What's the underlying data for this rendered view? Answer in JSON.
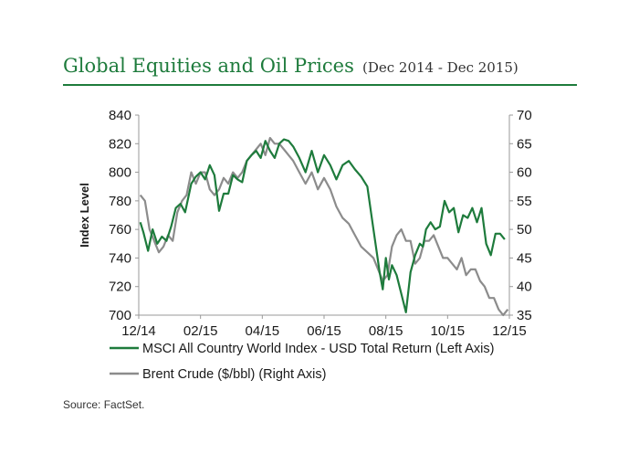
{
  "title": "Global Equities and Oil Prices",
  "subtitle": "(Dec 2014 - Dec 2015)",
  "source": "Source: FactSet.",
  "colors": {
    "accent": "#1e7b3c",
    "equity": "#1e7b3c",
    "oil": "#8c8c8c"
  },
  "chart_data": {
    "type": "line",
    "xlabel": "",
    "ylabel": "Index Level",
    "y2label": "",
    "x_range": [
      0,
      12.0
    ],
    "x_tick_positions": [
      0,
      2,
      4,
      6,
      8,
      10,
      12
    ],
    "x_tick_labels": [
      "12/14",
      "02/15",
      "04/15",
      "06/15",
      "08/15",
      "10/15",
      "12/15"
    ],
    "ylim": [
      700,
      840
    ],
    "yticks": [
      700,
      720,
      740,
      760,
      780,
      800,
      820,
      840
    ],
    "y2lim": [
      35,
      70
    ],
    "y2ticks": [
      35,
      40,
      45,
      50,
      55,
      60,
      65,
      70
    ],
    "grid": false,
    "legend_position": "bottom",
    "series": [
      {
        "name": "MSCI All Country World Index - USD Total Return (Left Axis)",
        "axis": "left",
        "x": [
          0.05,
          0.15,
          0.3,
          0.45,
          0.6,
          0.75,
          0.9,
          1.05,
          1.2,
          1.35,
          1.5,
          1.7,
          1.85,
          2.0,
          2.15,
          2.3,
          2.45,
          2.6,
          2.75,
          2.9,
          3.05,
          3.2,
          3.35,
          3.5,
          3.65,
          3.8,
          3.95,
          4.1,
          4.25,
          4.4,
          4.55,
          4.7,
          4.85,
          5.0,
          5.2,
          5.4,
          5.6,
          5.8,
          6.0,
          6.2,
          6.4,
          6.6,
          6.8,
          7.0,
          7.2,
          7.4,
          7.6,
          7.8,
          7.9,
          8.0,
          8.1,
          8.2,
          8.35,
          8.5,
          8.65,
          8.8,
          8.95,
          9.1,
          9.2,
          9.3,
          9.45,
          9.6,
          9.75,
          9.9,
          10.05,
          10.2,
          10.35,
          10.5,
          10.65,
          10.8,
          10.95,
          11.1,
          11.25,
          11.4,
          11.55,
          11.7,
          11.85
        ],
        "values": [
          765,
          758,
          745,
          760,
          750,
          755,
          752,
          762,
          775,
          778,
          772,
          792,
          797,
          800,
          795,
          805,
          798,
          773,
          785,
          785,
          798,
          795,
          793,
          808,
          812,
          815,
          810,
          822,
          815,
          810,
          820,
          823,
          822,
          818,
          810,
          800,
          815,
          800,
          812,
          805,
          795,
          805,
          808,
          802,
          797,
          790,
          760,
          730,
          718,
          740,
          725,
          735,
          728,
          715,
          702,
          730,
          742,
          750,
          748,
          760,
          765,
          760,
          762,
          780,
          772,
          775,
          758,
          770,
          768,
          775,
          765,
          775,
          750,
          742,
          757,
          757,
          753
        ]
      },
      {
        "name": "Brent Crude ($/bbl) (Right Axis)",
        "axis": "right",
        "x": [
          0.05,
          0.2,
          0.35,
          0.5,
          0.65,
          0.8,
          0.95,
          1.1,
          1.25,
          1.4,
          1.55,
          1.7,
          1.85,
          2.0,
          2.15,
          2.3,
          2.45,
          2.6,
          2.75,
          2.9,
          3.05,
          3.2,
          3.35,
          3.5,
          3.65,
          3.8,
          3.95,
          4.1,
          4.25,
          4.4,
          4.55,
          4.7,
          4.85,
          5.0,
          5.2,
          5.4,
          5.6,
          5.8,
          6.0,
          6.2,
          6.4,
          6.6,
          6.8,
          7.0,
          7.2,
          7.4,
          7.6,
          7.75,
          7.9,
          8.05,
          8.2,
          8.35,
          8.5,
          8.65,
          8.8,
          8.95,
          9.1,
          9.25,
          9.4,
          9.55,
          9.7,
          9.85,
          10.0,
          10.15,
          10.3,
          10.45,
          10.6,
          10.75,
          10.9,
          11.05,
          11.2,
          11.35,
          11.5,
          11.65,
          11.8,
          11.95
        ],
        "values": [
          56,
          55,
          50,
          48,
          46,
          47,
          49,
          48,
          53,
          55,
          56,
          60,
          58,
          60,
          60,
          57,
          56,
          57,
          59,
          58,
          60,
          59,
          60,
          62,
          63,
          64,
          65,
          63,
          66,
          65,
          65,
          64,
          63,
          62,
          60,
          58,
          60,
          57,
          59,
          57,
          54,
          52,
          51,
          49,
          47,
          46,
          45,
          43,
          41,
          42,
          47,
          49,
          50,
          48,
          48,
          44,
          45,
          48,
          48,
          49,
          47,
          45,
          45,
          44,
          43,
          45,
          42,
          43,
          43,
          41,
          40,
          38,
          38,
          36,
          35,
          36
        ]
      }
    ]
  }
}
